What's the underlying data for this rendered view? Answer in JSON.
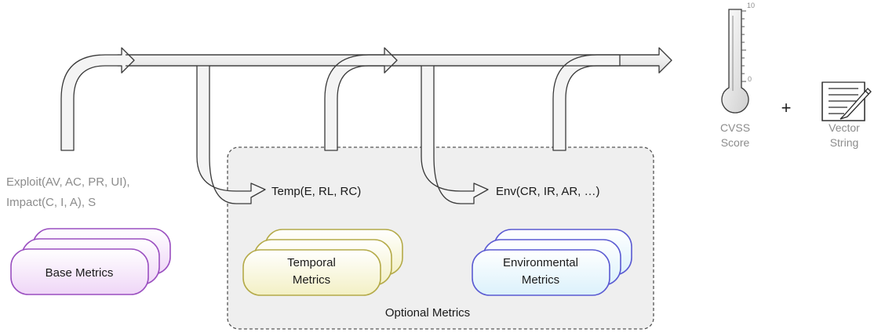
{
  "base": {
    "formula_line1": "Exploit(AV, AC, PR, UI),",
    "formula_line2": "Impact(C, I, A), S",
    "label": "Base Metrics"
  },
  "temporal": {
    "formula": "Temp(E, RL, RC)",
    "label_line1": "Temporal",
    "label_line2": "Metrics"
  },
  "environmental": {
    "formula": "Env(CR, IR, AR, …)",
    "label_line1": "Environmental",
    "label_line2": "Metrics"
  },
  "optional": {
    "label": "Optional Metrics"
  },
  "score": {
    "scale_max": "10",
    "scale_min": "0",
    "label_line1": "CVSS",
    "label_line2": "Score"
  },
  "plus": "+",
  "vector": {
    "label_line1": "Vector",
    "label_line2": "String"
  },
  "colors": {
    "base_stroke": "#9a4fc0",
    "base_fill": "#efd6f7",
    "temporal_stroke": "#b4aa48",
    "temporal_fill": "#f3f0c4",
    "environmental_stroke": "#5a5ad2",
    "environmental_fill": "#dbf1fb",
    "optional_fill": "#efefef"
  }
}
